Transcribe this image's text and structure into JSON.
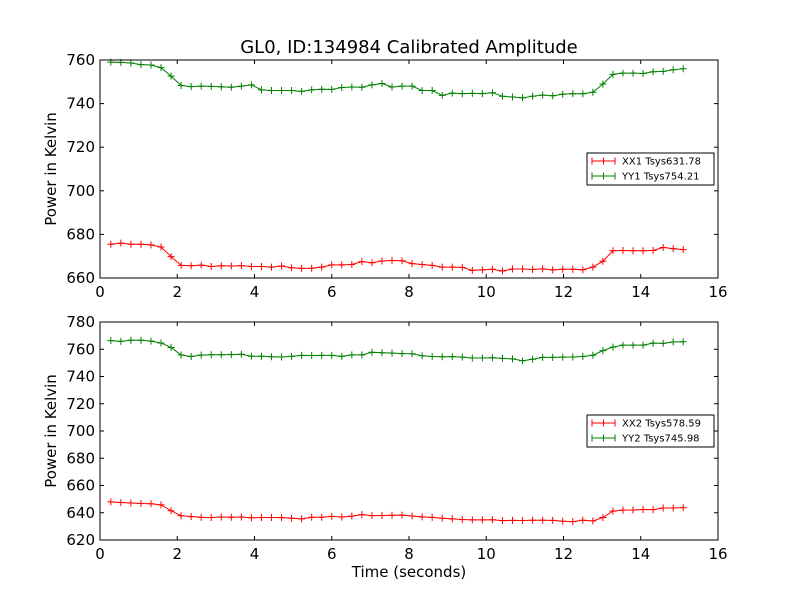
{
  "chart_data": [
    {
      "type": "line",
      "title": "GL0, ID:134984 Calibrated Amplitude",
      "xlabel": "",
      "ylabel": "Power in Kelvin",
      "xlim": [
        0,
        16
      ],
      "ylim": [
        660,
        760
      ],
      "xticks": [
        0,
        2,
        4,
        6,
        8,
        10,
        12,
        14,
        16
      ],
      "yticks": [
        660,
        680,
        700,
        720,
        740,
        760
      ],
      "grid": false,
      "legend_position": "center-right",
      "x": [
        0.28,
        0.54,
        0.8,
        1.06,
        1.32,
        1.58,
        1.84,
        2.1,
        2.36,
        2.62,
        2.88,
        3.14,
        3.4,
        3.66,
        3.92,
        4.18,
        4.44,
        4.7,
        4.96,
        5.22,
        5.48,
        5.74,
        6.0,
        6.26,
        6.52,
        6.78,
        7.04,
        7.3,
        7.56,
        7.82,
        8.08,
        8.34,
        8.6,
        8.86,
        9.12,
        9.38,
        9.64,
        9.9,
        10.16,
        10.42,
        10.68,
        10.94,
        11.2,
        11.46,
        11.72,
        11.98,
        12.24,
        12.5,
        12.76,
        13.02,
        13.28,
        13.54,
        13.8,
        14.06,
        14.32,
        14.58,
        14.84,
        15.1
      ],
      "series": [
        {
          "name": "XX1 Tsys631.78",
          "color": "#ff0000",
          "values": [
            675.5,
            676,
            675.5,
            675.5,
            675.2,
            674.2,
            669.8,
            665.8,
            665.6,
            665.9,
            665.3,
            665.6,
            665.5,
            665.7,
            665.3,
            665.3,
            665.0,
            665.5,
            664.7,
            664.4,
            664.5,
            665.0,
            666.0,
            666.0,
            666.2,
            667.5,
            667.0,
            667.8,
            668.0,
            667.9,
            666.6,
            666.2,
            665.8,
            665.0,
            665.0,
            664.9,
            663.5,
            663.7,
            664.0,
            663.2,
            664.1,
            664.1,
            663.9,
            664.2,
            663.7,
            664.0,
            664.0,
            663.8,
            665.0,
            667.7,
            672.5,
            672.6,
            672.5,
            672.5,
            672.6,
            674.0,
            673.5,
            673.0
          ]
        },
        {
          "name": "YY1 Tsys754.21",
          "color": "#008000",
          "values": [
            759,
            758.9,
            758.6,
            757.9,
            757.7,
            756.5,
            752.6,
            748.3,
            747.8,
            748.0,
            747.9,
            747.7,
            747.5,
            748.0,
            748.6,
            746.3,
            746.0,
            746.0,
            746.0,
            745.6,
            746.3,
            746.6,
            746.5,
            747.4,
            747.6,
            747.5,
            748.6,
            749.2,
            747.6,
            748.0,
            748.0,
            746.0,
            746.0,
            743.8,
            744.8,
            744.6,
            744.7,
            744.6,
            745.0,
            743.4,
            743.0,
            742.6,
            743.4,
            743.9,
            743.6,
            744.3,
            744.6,
            744.5,
            745.2,
            749.0,
            753.4,
            754.0,
            754.0,
            753.8,
            754.6,
            754.8,
            755.5,
            756.0
          ]
        }
      ]
    },
    {
      "type": "line",
      "title": "",
      "xlabel": "Time (seconds)",
      "ylabel": "Power in Kelvin",
      "xlim": [
        0,
        16
      ],
      "ylim": [
        620,
        780
      ],
      "xticks": [
        0,
        2,
        4,
        6,
        8,
        10,
        12,
        14,
        16
      ],
      "yticks": [
        620,
        640,
        660,
        680,
        700,
        720,
        740,
        760,
        780
      ],
      "grid": false,
      "legend_position": "center-right",
      "x": [
        0.28,
        0.54,
        0.8,
        1.06,
        1.32,
        1.58,
        1.84,
        2.1,
        2.36,
        2.62,
        2.88,
        3.14,
        3.4,
        3.66,
        3.92,
        4.18,
        4.44,
        4.7,
        4.96,
        5.22,
        5.48,
        5.74,
        6.0,
        6.26,
        6.52,
        6.78,
        7.04,
        7.3,
        7.56,
        7.82,
        8.08,
        8.34,
        8.6,
        8.86,
        9.12,
        9.38,
        9.64,
        9.9,
        10.16,
        10.42,
        10.68,
        10.94,
        11.2,
        11.46,
        11.72,
        11.98,
        12.24,
        12.5,
        12.76,
        13.02,
        13.28,
        13.54,
        13.8,
        14.06,
        14.32,
        14.58,
        14.84,
        15.1
      ],
      "series": [
        {
          "name": "XX2 Tsys578.59",
          "color": "#ff0000",
          "values": [
            648,
            647.5,
            647.2,
            646.8,
            646.6,
            645.8,
            641.5,
            637.8,
            637.2,
            636.6,
            636.5,
            636.9,
            636.7,
            636.9,
            636.3,
            636.5,
            636.5,
            636.4,
            636.0,
            635.5,
            636.7,
            636.7,
            637.3,
            636.9,
            637.5,
            638.6,
            637.9,
            638.0,
            638.2,
            638.3,
            637.6,
            637.0,
            636.6,
            636.0,
            635.5,
            635.0,
            634.8,
            634.8,
            634.9,
            634.2,
            634.4,
            634.3,
            634.5,
            634.5,
            634.4,
            633.8,
            633.5,
            634.5,
            634.0,
            636.5,
            641.2,
            641.9,
            642.0,
            642.4,
            642.3,
            643.5,
            643.5,
            643.8
          ]
        },
        {
          "name": "YY2 Tsys745.98",
          "color": "#008000",
          "values": [
            766.3,
            765.8,
            766.6,
            766.6,
            766.0,
            764.6,
            761.3,
            755.8,
            754.7,
            755.7,
            756.0,
            756.0,
            756.1,
            756.3,
            754.9,
            754.9,
            754.5,
            754.3,
            754.8,
            755.5,
            755.4,
            755.5,
            755.5,
            754.8,
            755.9,
            755.9,
            757.8,
            757.4,
            757.2,
            756.8,
            756.7,
            755.2,
            754.7,
            754.5,
            754.6,
            754.2,
            753.6,
            753.6,
            753.8,
            753.3,
            752.9,
            751.6,
            752.7,
            754.0,
            754.0,
            754.2,
            754.3,
            754.7,
            755.6,
            759.0,
            761.6,
            763.0,
            763.0,
            763.0,
            764.5,
            764.3,
            765.3,
            765.5
          ]
        }
      ]
    }
  ]
}
